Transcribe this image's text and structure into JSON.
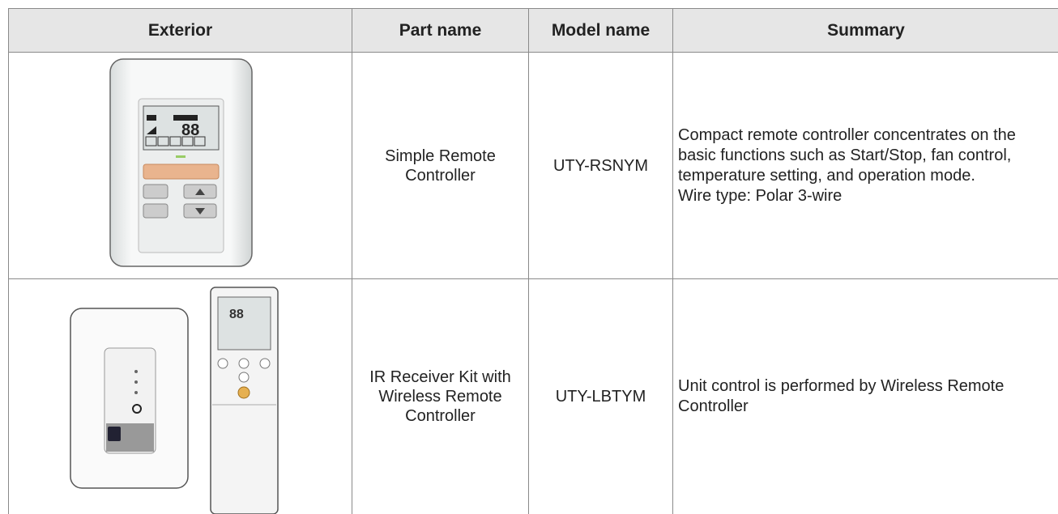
{
  "table": {
    "header": [
      "Exterior",
      "Part name",
      "Model name",
      "Summary"
    ],
    "rows": [
      {
        "part_name": "Simple Remote Controller",
        "model_name": "UTY-RSNYM",
        "summary": [
          "Compact remote controller concentrates on the basic functions such as Start/Stop, fan control, temperature setting, and operation mode.",
          "Wire type: Polar 3-wire"
        ]
      },
      {
        "part_name": "IR Receiver Kit with Wireless Remote Controller",
        "model_name": "UTY-LBTYM",
        "summary": [
          "Unit control is performed by Wireless Remote Controller"
        ]
      }
    ]
  }
}
